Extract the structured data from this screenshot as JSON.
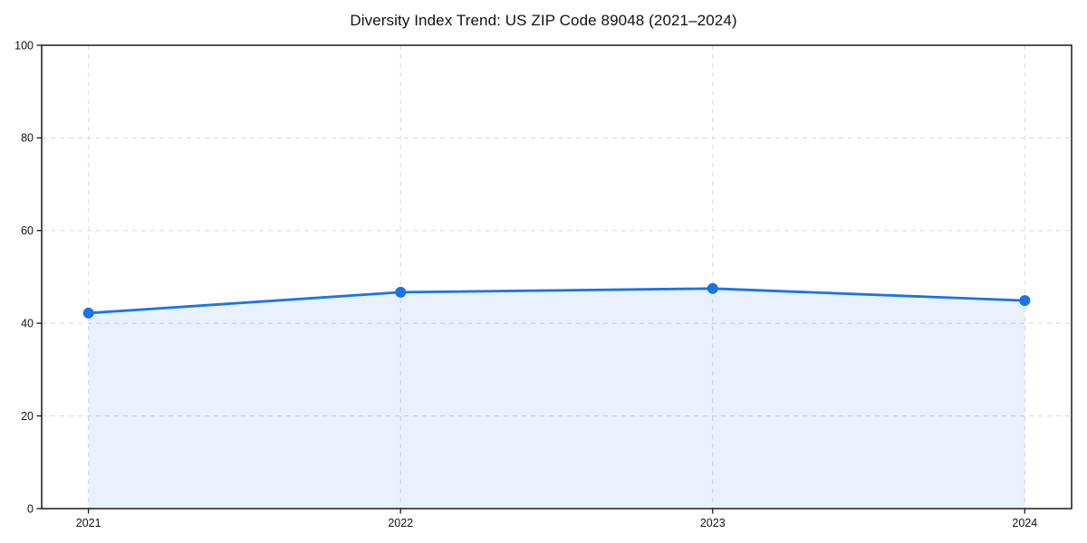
{
  "title": "Diversity Index Trend: US ZIP Code 89048 (2021–2024)",
  "chart_data": {
    "type": "area",
    "title": "Diversity Index Trend: US ZIP Code 89048 (2021–2024)",
    "x": [
      2021,
      2022,
      2023,
      2024
    ],
    "series": [
      {
        "name": "Diversity Index",
        "values": [
          42.2,
          46.7,
          47.5,
          44.9
        ]
      }
    ],
    "xlabel": "",
    "ylabel": "",
    "xlim": [
      2020.85,
      2024.15
    ],
    "ylim": [
      0,
      100
    ],
    "xticks": [
      2021,
      2022,
      2023,
      2024
    ],
    "xtick_labels": [
      "2021",
      "2022",
      "2023",
      "2024"
    ],
    "yticks": [
      0,
      20,
      40,
      60,
      80,
      100
    ],
    "ytick_labels": [
      "0",
      "20",
      "40",
      "60",
      "80",
      "100"
    ],
    "grid": true,
    "grid_style": "dashed",
    "legend": false,
    "colors": {
      "line": "#1a73e8",
      "marker": "#1a73e8",
      "area_fill": "rgba(26,115,232,0.10)",
      "grid": "#dcdcdc",
      "axis": "#1a1a1a",
      "text": "#111111",
      "background": "#ffffff"
    }
  }
}
